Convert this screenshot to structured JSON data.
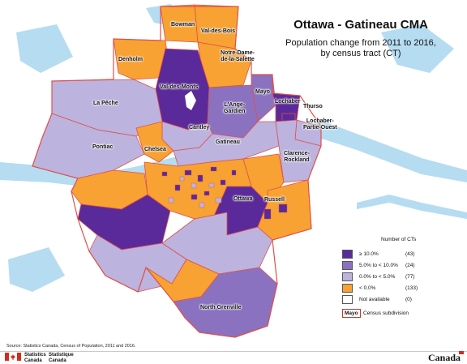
{
  "title": "Ottawa - Gatineau CMA",
  "subtitle_lines": [
    "Population change from 2011 to 2016,",
    "by census tract (CT)"
  ],
  "colors": {
    "strong_growth": "#5b2a9a",
    "moderate_growth": "#8a72c0",
    "low_growth": "#bcb3de",
    "decline": "#f7a233",
    "not_available": "#ffffff",
    "water": "#b6dcf1",
    "boundary": "#e0504a"
  },
  "legend": {
    "title": "Number of CTs",
    "items": [
      {
        "label": "≥ 10.0%",
        "count": "(43)",
        "color": "#5b2a9a"
      },
      {
        "label": "5.0% to < 10.0%",
        "count": "(24)",
        "color": "#8a72c0"
      },
      {
        "label": "0.0% to < 5.0%",
        "count": "(77)",
        "color": "#bcb3de"
      },
      {
        "label": "< 0.0%",
        "count": "(133)",
        "color": "#f7a233"
      },
      {
        "label": "Not available",
        "count": "(0)",
        "color": "#ffffff"
      }
    ],
    "subdivision_sample": "Mayo",
    "subdivision_label": "Census subdivision"
  },
  "places": {
    "bowman": "Bowman",
    "val_des_bois": "Val-des-Bois",
    "denholm": "Denholm",
    "notre_dame_1": "Notre-Dame-",
    "notre_dame_2": "de-la-Salette",
    "val_des_monts": "Val-des-Monts",
    "mayo": "Mayo",
    "la_peche": "La Pêche",
    "lange_gardien_1": "L'Ange-",
    "lange_gardien_2": "Gardien",
    "lochaber": "Lochaber",
    "thurso": "Thurso",
    "lochaber_po_1": "Lochaber-",
    "lochaber_po_2": "Partie-Ouest",
    "cantley": "Cantley",
    "pontiac": "Pontiac",
    "chelsea": "Chelsea",
    "gatineau": "Gatineau",
    "clarence_1": "Clarence-",
    "clarence_2": "Rockland",
    "ottawa": "Ottawa",
    "russell": "Russell",
    "north_grenville": "North Grenville"
  },
  "source": "Source: Statistics Canada, Census of Population, 2011 and 2016.",
  "footer": {
    "org_en_1": "Statistics",
    "org_en_2": "Canada",
    "org_fr_1": "Statistique",
    "org_fr_2": "Canada",
    "wordmark": "Canada"
  }
}
